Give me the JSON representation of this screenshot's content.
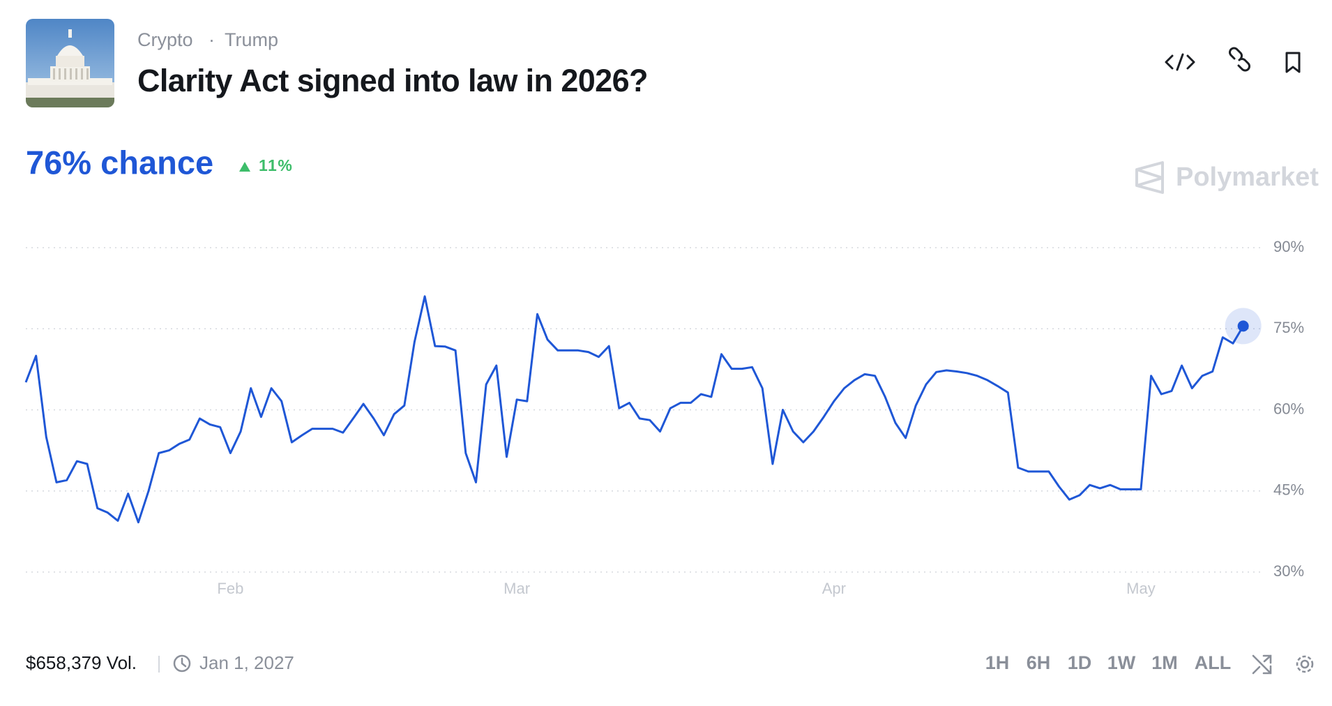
{
  "header": {
    "tags": [
      "Crypto",
      "Trump"
    ],
    "title": "Clarity Act signed into law in 2026?"
  },
  "summary": {
    "chance": "76% chance",
    "change": "11%"
  },
  "brand": "Polymarket",
  "footer": {
    "volume": "$658,379 Vol.",
    "end_date": "Jan 1, 2027",
    "ranges": [
      "1H",
      "6H",
      "1D",
      "1W",
      "1M",
      "ALL"
    ],
    "active_range": "ALL"
  },
  "chart_data": {
    "type": "line",
    "color": "#1f57d6",
    "grid": true,
    "ylim": [
      30,
      90
    ],
    "yticks": [
      {
        "value": 90,
        "label": "90%"
      },
      {
        "value": 75,
        "label": "75%"
      },
      {
        "value": 60,
        "label": "60%"
      },
      {
        "value": 45,
        "label": "45%"
      },
      {
        "value": 30,
        "label": "30%"
      }
    ],
    "xlim": [
      0,
      121
    ],
    "xticks": [
      {
        "value": 20,
        "label": "Feb"
      },
      {
        "value": 48,
        "label": "Mar"
      },
      {
        "value": 79,
        "label": "Apr"
      },
      {
        "value": 109,
        "label": "May"
      }
    ],
    "values": [
      65.1,
      70,
      55,
      46.6,
      47,
      50.5,
      50,
      41.8,
      41,
      39.5,
      44.5,
      39.2,
      45,
      52,
      52.5,
      53.7,
      54.5,
      58.4,
      57.3,
      56.8,
      52,
      56,
      64,
      58.7,
      64,
      61.6,
      54,
      55.3,
      56.5,
      56.5,
      56.5,
      55.8,
      58.4,
      61.1,
      58.4,
      55.3,
      59.2,
      60.8,
      72.6,
      81,
      71.8,
      71.7,
      71,
      52,
      46.6,
      64.7,
      68.2,
      51.3,
      61.9,
      61.6,
      77.7,
      73,
      71,
      71,
      71,
      70.7,
      69.8,
      71.8,
      60.3,
      61.3,
      58.4,
      58.1,
      56,
      60.3,
      61.3,
      61.3,
      62.9,
      62.4,
      70.3,
      67.6,
      67.6,
      67.9,
      64,
      50,
      60,
      56,
      54,
      56,
      58.7,
      61.6,
      64,
      65.5,
      66.6,
      66.3,
      62.4,
      57.6,
      54.8,
      60.8,
      64.7,
      67,
      67.3,
      67.1,
      66.8,
      66.3,
      65.5,
      64.4,
      63.2,
      49.3,
      48.6,
      48.6,
      48.6,
      45.8,
      43.4,
      44.2,
      46.1,
      45.5,
      46.1,
      45.3,
      45.3,
      45.3,
      66.3,
      62.9,
      63.5,
      68.2,
      64,
      66.3,
      67.1,
      73.4,
      72.3,
      75.5
    ]
  }
}
